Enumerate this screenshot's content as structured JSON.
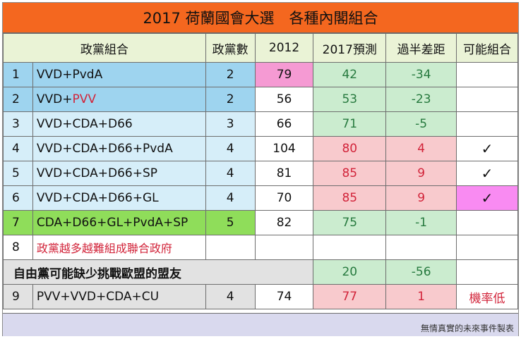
{
  "title": "2017 荷蘭國會大選　各種內閣組合",
  "headers": [
    "政黨組合",
    "政黨數",
    "2012",
    "2017預測",
    "過半差距",
    "可能組合"
  ],
  "rows": [
    {
      "no": "1",
      "combo_a": "VVD+PvdA",
      "combo_b": "",
      "parties": "2",
      "y2012": "79",
      "y2017": "42",
      "gap": "-34",
      "possible": ""
    },
    {
      "no": "2",
      "combo_a": "VVD+",
      "combo_b": "PVV",
      "parties": "2",
      "y2012": "56",
      "y2017": "53",
      "gap": "-23",
      "possible": ""
    },
    {
      "no": "3",
      "combo_a": "VVD+CDA+D66",
      "combo_b": "",
      "parties": "3",
      "y2012": "66",
      "y2017": "71",
      "gap": "-5",
      "possible": ""
    },
    {
      "no": "4",
      "combo_a": "VVD+CDA+D66+PvdA",
      "combo_b": "",
      "parties": "4",
      "y2012": "104",
      "y2017": "80",
      "gap": "4",
      "possible": "✓"
    },
    {
      "no": "5",
      "combo_a": "VVD+CDA+D66+SP",
      "combo_b": "",
      "parties": "4",
      "y2012": "81",
      "y2017": "85",
      "gap": "9",
      "possible": "✓"
    },
    {
      "no": "6",
      "combo_a": "VVD+CDA+D66+GL",
      "combo_b": "",
      "parties": "4",
      "y2012": "70",
      "y2017": "85",
      "gap": "9",
      "possible": "✓"
    },
    {
      "no": "7",
      "combo_a": "CDA+D66+GL+PvdA+SP",
      "combo_b": "",
      "parties": "5",
      "y2012": "82",
      "y2017": "75",
      "gap": "-1",
      "possible": ""
    }
  ],
  "row8": {
    "no": "8",
    "note": "政黨越多越難組成聯合政府"
  },
  "liberal": {
    "label": "自由黨可能缺少挑戰歐盟的盟友",
    "y2017": "20",
    "gap": "-56"
  },
  "row9": {
    "no": "9",
    "combo": "PVV+VVD+CDA+CU",
    "parties": "4",
    "y2012": "74",
    "y2017": "77",
    "gap": "1",
    "possible": "機率低"
  },
  "credit": "無情真實的未來事件製表",
  "colors": {
    "title": "#f4671f",
    "header": "#eaf3d6",
    "row_blue": "#9ed4ef",
    "row_lightblue": "#d6eef9",
    "row_green": "#8fdd5a",
    "pink": "#f59ad3",
    "light_green": "#cbeccf",
    "light_red": "#f8cacd",
    "magenta": "#f98bf2",
    "footer": "#d9d9ee",
    "red_text": "#d2243a",
    "green_text": "#277a3f"
  }
}
